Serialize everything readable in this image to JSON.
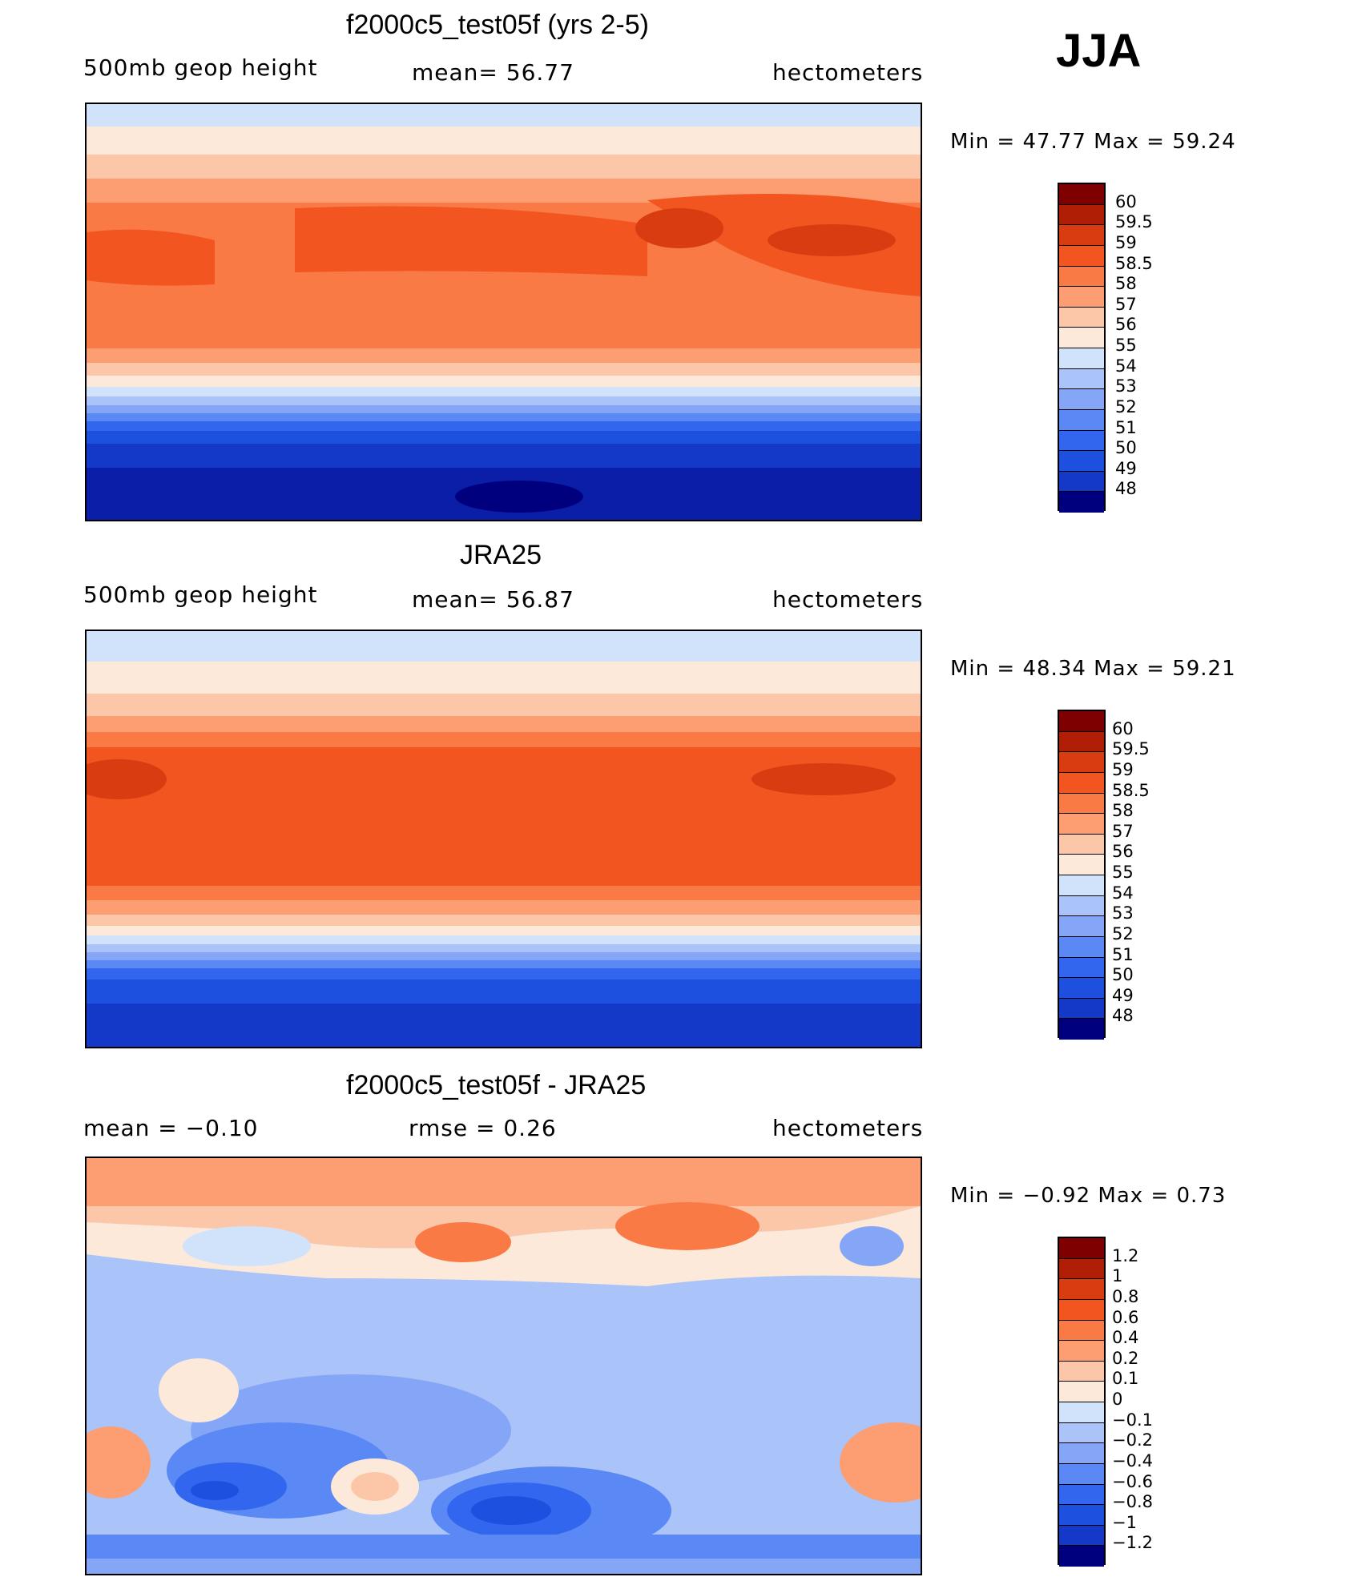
{
  "season": "JJA",
  "panels": [
    {
      "title": "f2000c5_test05f (yrs 2-5)",
      "left_label": "500mb  geop  height",
      "center_label": "mean=   56.77",
      "right_label": "hectometers",
      "minmax": "Min  =    47.77  Max  =    59.24",
      "colorbar_labels": [
        "60",
        "59.5",
        "59",
        "58.5",
        "58",
        "57",
        "56",
        "55",
        "54",
        "53",
        "52",
        "51",
        "50",
        "49",
        "48"
      ]
    },
    {
      "title": "JRA25",
      "left_label": "500mb  geop  height",
      "center_label": "mean=   56.87",
      "right_label": "hectometers",
      "minmax": "Min  =    48.34  Max  =    59.21",
      "colorbar_labels": [
        "60",
        "59.5",
        "59",
        "58.5",
        "58",
        "57",
        "56",
        "55",
        "54",
        "53",
        "52",
        "51",
        "50",
        "49",
        "48"
      ]
    },
    {
      "title": "f2000c5_test05f - JRA25",
      "left_label": "mean  =    −0.10",
      "center_label": "rmse  =     0.26",
      "right_label": "hectometers",
      "minmax": "Min  =    −0.92  Max  =      0.73",
      "colorbar_labels": [
        "1.2",
        "1",
        "0.8",
        "0.6",
        "0.4",
        "0.2",
        "0.1",
        "0",
        "−0.1",
        "−0.2",
        "−0.4",
        "−0.6",
        "−0.8",
        "−1",
        "−1.2"
      ]
    }
  ],
  "chart_data": [
    {
      "type": "heatmap",
      "title": "f2000c5_test05f (yrs 2-5)",
      "variable": "500mb geop height",
      "units": "hectometers",
      "mean": 56.77,
      "min": 47.77,
      "max": 59.24,
      "contour_levels": [
        48,
        49,
        50,
        51,
        52,
        53,
        54,
        55,
        56,
        57,
        58,
        58.5,
        59,
        59.5,
        60
      ],
      "colors": [
        "#00007f",
        "#0a1ea8",
        "#1438c8",
        "#1e50e0",
        "#3366ee",
        "#5a88f5",
        "#85a6f7",
        "#aac3f8",
        "#d0e3fb",
        "#fde9d9",
        "#fcc7a8",
        "#fc9e72",
        "#fa7a46",
        "#f25520",
        "#d93c10",
        "#b01e05",
        "#7f0000"
      ]
    },
    {
      "type": "heatmap",
      "title": "JRA25",
      "variable": "500mb geop height",
      "units": "hectometers",
      "mean": 56.87,
      "min": 48.34,
      "max": 59.21,
      "contour_levels": [
        48,
        49,
        50,
        51,
        52,
        53,
        54,
        55,
        56,
        57,
        58,
        58.5,
        59,
        59.5,
        60
      ]
    },
    {
      "type": "heatmap",
      "title": "f2000c5_test05f - JRA25",
      "units": "hectometers",
      "mean": -0.1,
      "rmse": 0.26,
      "min": -0.92,
      "max": 0.73,
      "contour_levels": [
        -1.2,
        -1,
        -0.8,
        -0.6,
        -0.4,
        -0.2,
        -0.1,
        0,
        0.1,
        0.2,
        0.4,
        0.6,
        0.8,
        1,
        1.2
      ]
    }
  ],
  "colorbar_colors": [
    "#7f0000",
    "#b01e05",
    "#d93c10",
    "#f25520",
    "#fa7a46",
    "#fc9e72",
    "#fcc7a8",
    "#fde9d9",
    "#d0e3fb",
    "#aac3f8",
    "#85a6f7",
    "#5a88f5",
    "#3366ee",
    "#1e50e0",
    "#1438c8",
    "#00007f"
  ]
}
